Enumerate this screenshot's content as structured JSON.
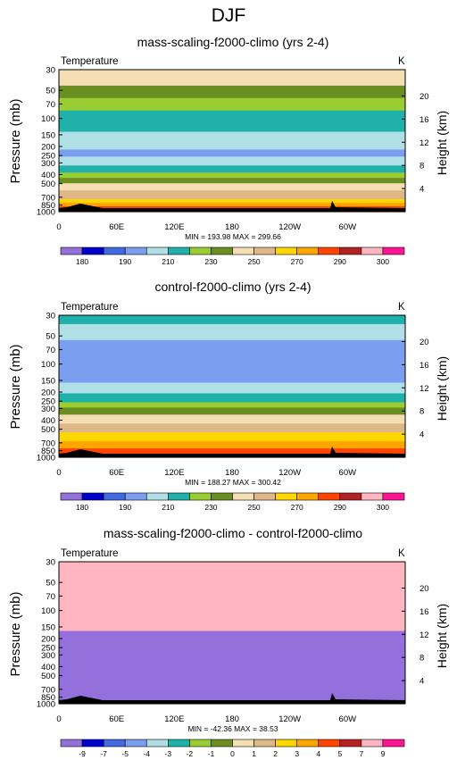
{
  "figure_title": "DJF",
  "colors": {
    "abs": [
      "#9370DB",
      "#0000CD",
      "#4169E1",
      "#7B9EF0",
      "#B0E0E6",
      "#20B2AA",
      "#9ACD32",
      "#6B8E23",
      "#F5DEB3",
      "#DEB887",
      "#FFD700",
      "#FFA500",
      "#FF4500",
      "#B22222",
      "#FFB6C1",
      "#FF1493"
    ],
    "diff": [
      "#9370DB",
      "#0000CD",
      "#4169E1",
      "#7B9EF0",
      "#B0E0E6",
      "#20B2AA",
      "#9ACD32",
      "#6B8E23",
      "#F5DEB3",
      "#DEB887",
      "#FFD700",
      "#FFA500",
      "#FF4500",
      "#B22222",
      "#FFB6C1",
      "#FF1493"
    ]
  },
  "chart_data": [
    {
      "type": "heatmap",
      "title": "mass-scaling-f2000-climo (yrs 2-4)",
      "variable_label": "Temperature",
      "units": "K",
      "ylabel": "Pressure (mb)",
      "ylabel_right": "Height (km)",
      "x_ticks": [
        "0",
        "60E",
        "120E",
        "180",
        "120W",
        "60W"
      ],
      "x_range": [
        0,
        360
      ],
      "y_ticks": [
        "30",
        "50",
        "70",
        "100",
        "150",
        "200",
        "250",
        "300",
        "400",
        "500",
        "700",
        "850",
        "1000"
      ],
      "y_tick_values": [
        30,
        50,
        70,
        100,
        150,
        200,
        250,
        300,
        400,
        500,
        700,
        850,
        1000
      ],
      "y_scale": "log",
      "y_range": [
        30,
        1000
      ],
      "height_ticks": [
        "20",
        "16",
        "12",
        "8",
        "4"
      ],
      "height_tick_values": [
        20,
        16,
        12,
        8,
        4
      ],
      "minmax": "MIN = 193.98   MAX = 299.66",
      "colorbar_labels": [
        "180",
        "190",
        "210",
        "230",
        "250",
        "270",
        "290",
        "300"
      ],
      "colorbar_levels": [
        175,
        180,
        185,
        190,
        200,
        210,
        220,
        230,
        240,
        250,
        260,
        270,
        280,
        290,
        295,
        300
      ],
      "profile": {
        "pressure": [
          30,
          50,
          70,
          100,
          150,
          200,
          250,
          300,
          400,
          500,
          700,
          850,
          925,
          1000
        ],
        "value": [
          249,
          237,
          224,
          216,
          209,
          201,
          198,
          206,
          222,
          242,
          257,
          274,
          286,
          298
        ]
      }
    },
    {
      "type": "heatmap",
      "title": "control-f2000-climo (yrs 2-4)",
      "variable_label": "Temperature",
      "units": "K",
      "ylabel": "Pressure (mb)",
      "ylabel_right": "Height (km)",
      "x_ticks": [
        "0",
        "60E",
        "120E",
        "180",
        "120W",
        "60W"
      ],
      "x_range": [
        0,
        360
      ],
      "y_ticks": [
        "30",
        "50",
        "70",
        "100",
        "150",
        "200",
        "250",
        "300",
        "400",
        "500",
        "700",
        "850",
        "1000"
      ],
      "y_tick_values": [
        30,
        50,
        70,
        100,
        150,
        200,
        250,
        300,
        400,
        500,
        700,
        850,
        1000
      ],
      "y_scale": "log",
      "y_range": [
        30,
        1000
      ],
      "height_ticks": [
        "20",
        "16",
        "12",
        "8",
        "4"
      ],
      "height_tick_values": [
        20,
        16,
        12,
        8,
        4
      ],
      "minmax": "MIN = 188.27   MAX = 300.42",
      "colorbar_labels": [
        "180",
        "190",
        "210",
        "230",
        "250",
        "270",
        "290",
        "300"
      ],
      "colorbar_levels": [
        175,
        180,
        185,
        190,
        200,
        210,
        220,
        230,
        240,
        250,
        260,
        270,
        280,
        290,
        295,
        300
      ],
      "profile": {
        "pressure": [
          30,
          50,
          70,
          100,
          150,
          200,
          250,
          300,
          400,
          500,
          700,
          850,
          925,
          1000
        ],
        "value": [
          215,
          203,
          193,
          193,
          197,
          209,
          219,
          231,
          247,
          256,
          271,
          284,
          288,
          296
        ]
      }
    },
    {
      "type": "heatmap",
      "title": "mass-scaling-f2000-climo - control-f2000-climo",
      "variable_label": "Temperature",
      "units": "K",
      "ylabel": "Pressure (mb)",
      "ylabel_right": "Height (km)",
      "x_ticks": [
        "0",
        "60E",
        "120E",
        "180",
        "120W",
        "60W"
      ],
      "x_range": [
        0,
        360
      ],
      "y_ticks": [
        "30",
        "50",
        "70",
        "100",
        "150",
        "200",
        "250",
        "300",
        "400",
        "500",
        "700",
        "850",
        "1000"
      ],
      "y_tick_values": [
        30,
        50,
        70,
        100,
        150,
        200,
        250,
        300,
        400,
        500,
        700,
        850,
        1000
      ],
      "y_scale": "log",
      "y_range": [
        30,
        1000
      ],
      "height_ticks": [
        "20",
        "16",
        "12",
        "8",
        "4"
      ],
      "height_tick_values": [
        20,
        16,
        12,
        8,
        4
      ],
      "minmax": "MIN = -42.36   MAX = 38.53",
      "colorbar_labels": [
        "-9",
        "-7",
        "-5",
        "-4",
        "-3",
        "-2",
        "-1",
        "0",
        "1",
        "2",
        "3",
        "4",
        "5",
        "7",
        "9"
      ],
      "colorbar_levels": [
        -9,
        -7,
        -5,
        -4,
        -3,
        -2,
        -1,
        0,
        1,
        2,
        3,
        4,
        5,
        7,
        9
      ],
      "profile": {
        "pressure": [
          30,
          150,
          165,
          185,
          1000
        ],
        "value": [
          38,
          38,
          3,
          -40,
          -40
        ]
      }
    }
  ]
}
